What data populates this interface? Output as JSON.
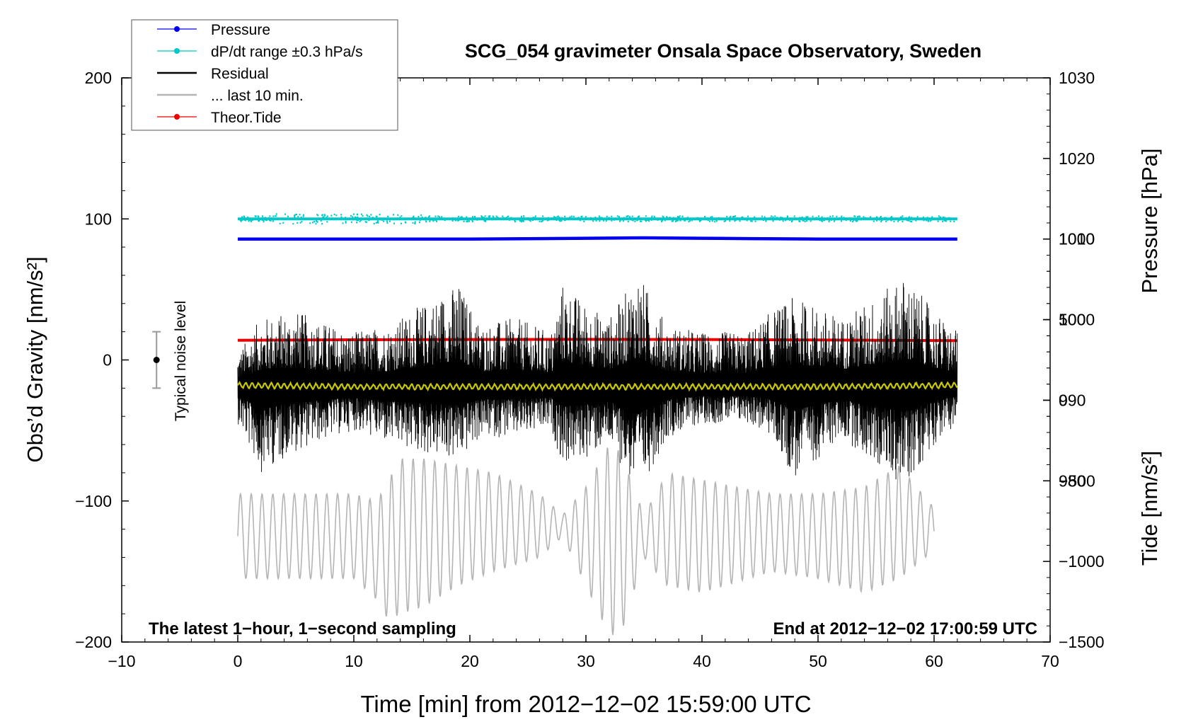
{
  "chart_data": {
    "type": "line",
    "title": "SCG_054 gravimeter Onsala Space Observatory, Sweden",
    "xlabel": "Time [min] from 2012−12−02 15:59:00 UTC",
    "ylabel_left": "Obs’d Gravity [nm/s²]",
    "ylabel_pressure": "Pressure [hPa]",
    "ylabel_tide": "Tide [nm/s²]",
    "xlim": [
      -10,
      70
    ],
    "ylim_left": [
      -200,
      200
    ],
    "pressure_axis_range": [
      960,
      1030
    ],
    "tide_axis_range": [
      -1500,
      2000
    ],
    "x_ticks": [
      {
        "value": -10,
        "label": "−10"
      },
      {
        "value": 0,
        "label": "0"
      },
      {
        "value": 10,
        "label": "10"
      },
      {
        "value": 20,
        "label": "20"
      },
      {
        "value": 30,
        "label": "30"
      },
      {
        "value": 40,
        "label": "40"
      },
      {
        "value": 50,
        "label": "50"
      },
      {
        "value": 60,
        "label": "60"
      },
      {
        "value": 70,
        "label": "70"
      }
    ],
    "y_left_ticks": [
      {
        "value": 200,
        "label": "200"
      },
      {
        "value": 100,
        "label": "100"
      },
      {
        "value": 0,
        "label": "0"
      },
      {
        "value": -100,
        "label": "−100"
      },
      {
        "value": -200,
        "label": "−200"
      }
    ],
    "pressure_ticks": [
      {
        "value": 1030,
        "label": "1030"
      },
      {
        "value": 1020,
        "label": "1020"
      },
      {
        "value": 1010,
        "label": "1010"
      },
      {
        "value": 1000,
        "label": "1000"
      },
      {
        "value": 990,
        "label": "990"
      },
      {
        "value": 980,
        "label": "980"
      }
    ],
    "tide_ticks": [
      {
        "value": 1000,
        "label": "1000"
      },
      {
        "value": 500,
        "label": "500"
      },
      {
        "value": 0,
        "label": "0"
      },
      {
        "value": -500,
        "label": "−500"
      },
      {
        "value": -1000,
        "label": "−1000"
      },
      {
        "value": -1500,
        "label": "−1500"
      }
    ],
    "legend": [
      {
        "label": "Pressure",
        "color": "#0000ee",
        "style": "line-dot"
      },
      {
        "label": "dP/dt range ±0.3 hPa/s",
        "color": "#00c8c8",
        "style": "line-dot"
      },
      {
        "label": "Residual",
        "color": "#000000",
        "style": "line"
      },
      {
        "label": "... last 10 min.",
        "color": "#b4b4b4",
        "style": "line"
      },
      {
        "label": "Theor.Tide",
        "color": "#ee0000",
        "style": "line-dot"
      }
    ],
    "legend_position": "top-left",
    "series": [
      {
        "name": "Pressure",
        "axis": "pressure",
        "color": "#0000ee",
        "x": [
          0,
          10,
          20,
          26,
          30,
          35,
          40,
          44,
          50,
          62
        ],
        "y": [
          1010.0,
          1010.0,
          1010.0,
          1010.05,
          1010.1,
          1010.15,
          1010.1,
          1010.05,
          1010.0,
          1010.0
        ]
      },
      {
        "name": "dP/dt range ±0.3 hPa/s",
        "axis": "left",
        "color": "#00c8c8",
        "x": [
          0,
          10,
          20,
          30,
          40,
          50,
          62
        ],
        "y": [
          100,
          100,
          100,
          100,
          100,
          100,
          100
        ]
      },
      {
        "name": "Residual envelope (max)",
        "axis": "left",
        "color": "#000000",
        "x": [
          0,
          2,
          5,
          8,
          10,
          13,
          15,
          19,
          21,
          24,
          27,
          28,
          30,
          32,
          34.5,
          37,
          40,
          44,
          46,
          48,
          52,
          55,
          57.5,
          60,
          62
        ],
        "y": [
          5,
          30,
          35,
          25,
          20,
          25,
          35,
          55,
          25,
          30,
          20,
          55,
          40,
          30,
          62,
          25,
          20,
          20,
          35,
          45,
          30,
          45,
          60,
          35,
          20
        ]
      },
      {
        "name": "Residual envelope (min)",
        "axis": "left",
        "color": "#000000",
        "x": [
          0,
          2,
          5,
          8,
          10,
          13,
          15,
          19,
          21,
          24,
          27,
          28,
          30,
          32,
          34.5,
          37,
          40,
          44,
          46,
          48,
          52,
          55,
          57.5,
          60,
          62
        ],
        "y": [
          -45,
          -80,
          -65,
          -55,
          -50,
          -60,
          -65,
          -72,
          -55,
          -55,
          -50,
          -75,
          -70,
          -60,
          -95,
          -55,
          -45,
          -45,
          -55,
          -85,
          -55,
          -75,
          -90,
          -60,
          -45
        ]
      },
      {
        "name": "Residual smoothed",
        "axis": "left",
        "color": "#c8c800",
        "x": [
          0,
          10,
          20,
          30,
          40,
          50,
          62
        ],
        "y": [
          -18,
          -19,
          -19,
          -19,
          -19,
          -19,
          -18
        ]
      },
      {
        "name": "... last 10 min.",
        "axis": "left",
        "color": "#b4b4b4",
        "x": [
          0,
          5,
          10,
          12,
          13,
          14,
          16,
          19,
          22,
          26,
          28,
          30,
          32,
          33,
          35,
          37,
          40,
          46,
          50,
          54,
          57,
          60
        ],
        "y_max": [
          -95,
          -95,
          -95,
          -100,
          -85,
          -70,
          -70,
          -75,
          -80,
          -95,
          -110,
          -90,
          -60,
          -65,
          -110,
          -80,
          -85,
          -95,
          -95,
          -90,
          -75,
          -105
        ],
        "y_min": [
          -155,
          -155,
          -155,
          -170,
          -185,
          -180,
          -175,
          -160,
          -150,
          -140,
          -125,
          -160,
          -195,
          -195,
          -140,
          -160,
          -165,
          -150,
          -155,
          -165,
          -155,
          -135
        ]
      },
      {
        "name": "Theor.Tide",
        "axis": "tide",
        "color": "#ee0000",
        "x": [
          0,
          10,
          20,
          30,
          40,
          50,
          62
        ],
        "y": [
          372,
          375,
          377,
          378,
          377,
          374,
          370
        ]
      }
    ],
    "noise_bar": {
      "x": -7,
      "center": 0,
      "half_range": 20,
      "label": "Typical noise level"
    },
    "annotations": [
      {
        "text": "The latest 1−hour, 1−second sampling",
        "position": "bottom-left"
      },
      {
        "text": "End at 2012−12−02 17:00:59 UTC",
        "position": "bottom-right"
      }
    ]
  }
}
